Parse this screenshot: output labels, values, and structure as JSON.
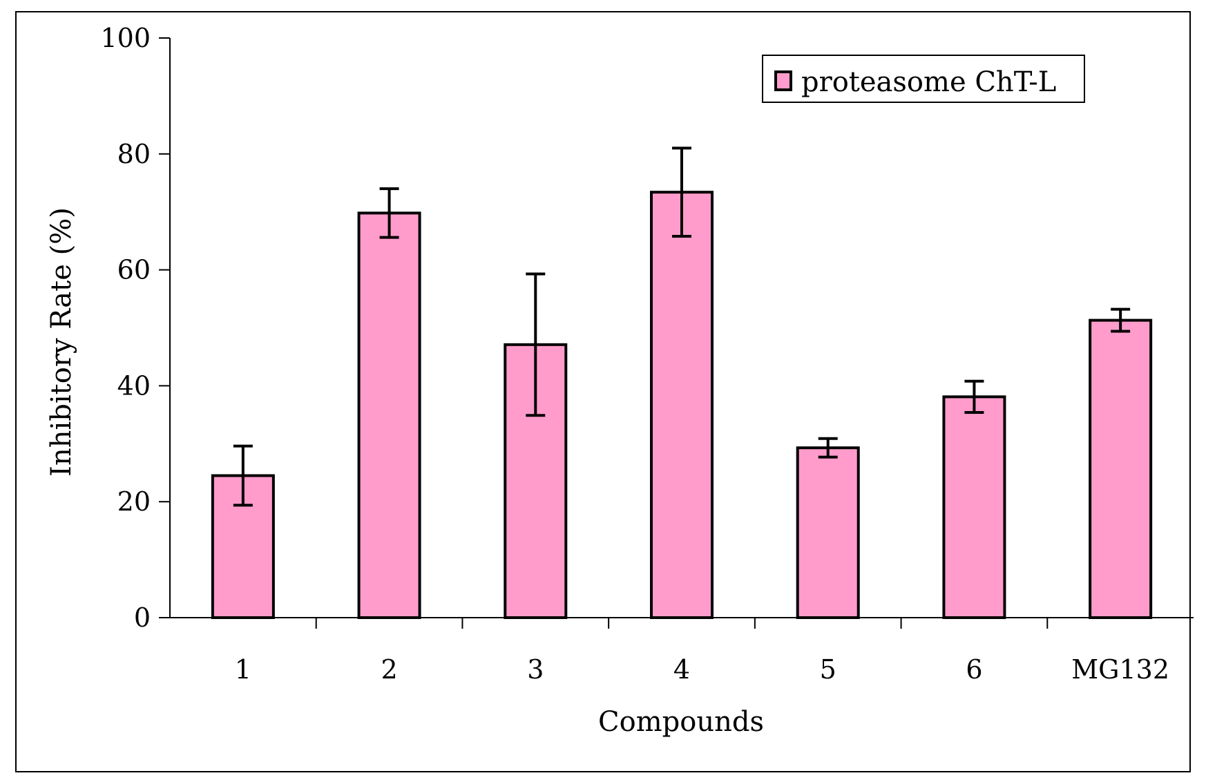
{
  "chart_data": {
    "type": "bar",
    "categories": [
      "1",
      "2",
      "3",
      "4",
      "5",
      "6",
      "MG132"
    ],
    "series": [
      {
        "name": "proteasome ChT-L",
        "values": [
          24.5,
          69.8,
          47.1,
          73.4,
          29.3,
          38.1,
          51.3
        ],
        "errors": [
          5.1,
          4.2,
          12.2,
          7.6,
          1.6,
          2.7,
          1.9
        ]
      }
    ],
    "xlabel": "Compounds",
    "ylabel": "Inhibitory Rate (%)",
    "ylim": [
      0,
      100
    ],
    "yticks": [
      0,
      20,
      40,
      60,
      80,
      100
    ],
    "grid": false,
    "legend_position": "top-right",
    "colors": {
      "bar": "#ff9ccc",
      "stroke": "#000000"
    }
  }
}
